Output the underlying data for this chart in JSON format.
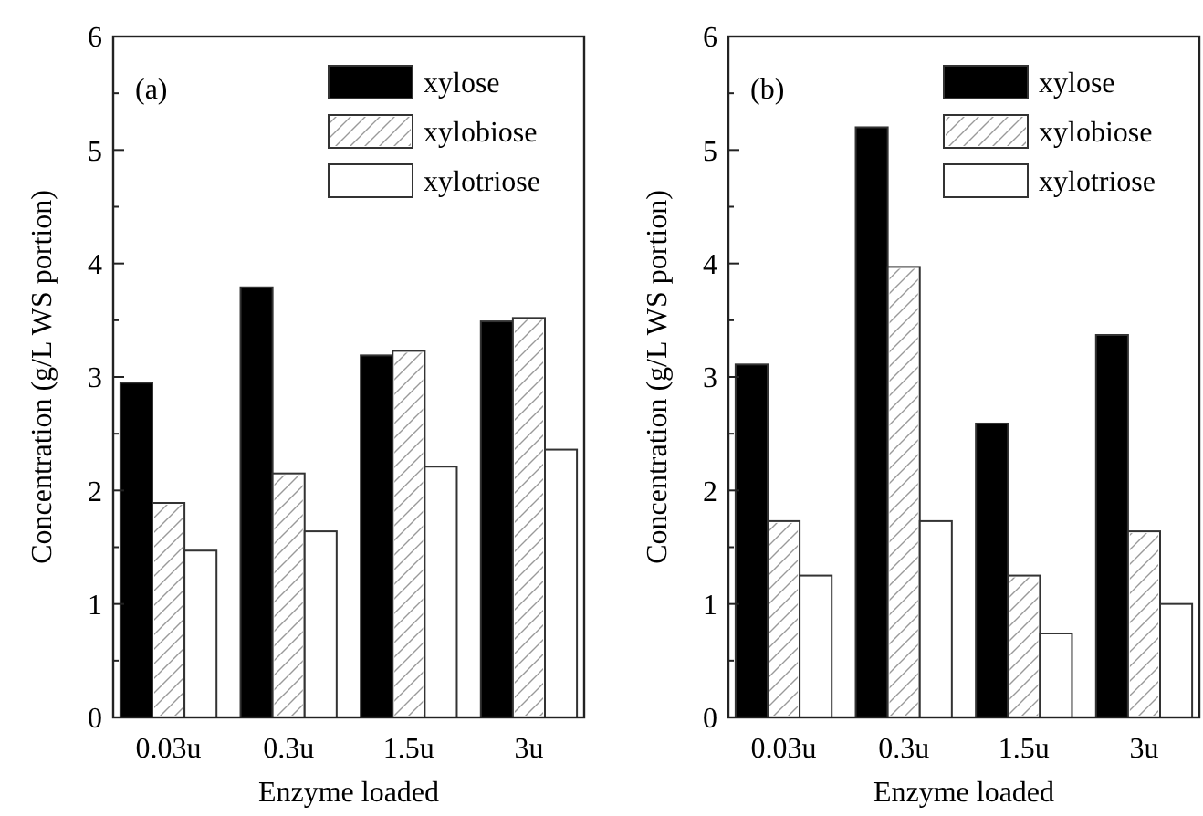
{
  "chart_data": [
    {
      "type": "bar",
      "xlabel": "Enzyme loaded",
      "ylabel": "Concentration (g/L WS portion)",
      "annotations": [
        "(a)"
      ],
      "categories": [
        "0.03u",
        "0.3u",
        "1.5u",
        "3u"
      ],
      "series": [
        {
          "name": "xylose",
          "color": "#000000",
          "values": [
            2.95,
            3.79,
            3.19,
            3.49
          ]
        },
        {
          "name": "xylobiose",
          "color": "#ffffff",
          "values": [
            1.89,
            2.15,
            3.23,
            3.52
          ]
        },
        {
          "name": "xylotriose",
          "color": "#ffffff",
          "values": [
            1.47,
            1.64,
            2.21,
            2.36
          ]
        }
      ],
      "ylim": [
        0,
        6
      ],
      "yticks": [
        0,
        {
          "value": 0.5,
          "label": null
        },
        1,
        {
          "value": 1.5,
          "label": null
        },
        2,
        {
          "value": 2.5,
          "label": null
        },
        3,
        {
          "value": 3.5,
          "label": null
        },
        4,
        {
          "value": 4.5,
          "label": null
        },
        5,
        {
          "value": 5.5,
          "label": null
        },
        6
      ],
      "legend": "top right"
    },
    {
      "type": "bar",
      "xlabel": "Enzyme loaded",
      "ylabel": "Concentration (g/L WS portion)",
      "annotations": [
        "(b)"
      ],
      "categories": [
        "0.03u",
        "0.3u",
        "1.5u",
        "3u"
      ],
      "series": [
        {
          "name": "xylose",
          "color": "#000000",
          "values": [
            3.11,
            5.2,
            2.59,
            3.37
          ]
        },
        {
          "name": "xylobiose",
          "color": "#ffffff",
          "values": [
            1.73,
            3.97,
            1.25,
            1.64
          ]
        },
        {
          "name": "xylotriose",
          "color": "#ffffff",
          "values": [
            1.25,
            1.73,
            0.74,
            1.0
          ]
        }
      ],
      "ylim": [
        0,
        6
      ],
      "yticks": [
        0,
        {
          "value": 0.5,
          "label": null
        },
        1,
        {
          "value": 1.5,
          "label": null
        },
        2,
        {
          "value": 2.5,
          "label": null
        },
        3,
        {
          "value": 3.5,
          "label": null
        },
        4,
        {
          "value": 4.5,
          "label": null
        },
        5,
        {
          "value": 5.5,
          "label": null
        },
        6
      ],
      "legend": "top right"
    }
  ]
}
